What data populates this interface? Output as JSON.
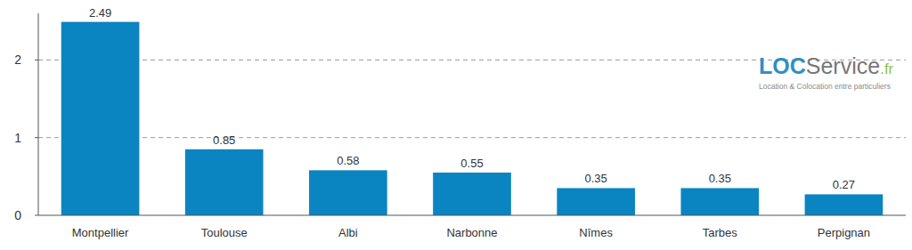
{
  "chart_data": {
    "type": "bar",
    "categories": [
      "Montpellier",
      "Toulouse",
      "Albi",
      "Narbonne",
      "Nîmes",
      "Tarbes",
      "Perpignan"
    ],
    "values": [
      2.49,
      0.85,
      0.58,
      0.55,
      0.35,
      0.35,
      0.27
    ],
    "color": "#0b84c2",
    "ylim": [
      0,
      2.6
    ],
    "yticks": [
      0,
      1,
      2
    ],
    "grid": true,
    "data_labels": true,
    "annotations": [
      "LOC",
      "Service",
      ".fr",
      "Location & Colocation entre particuliers"
    ]
  }
}
